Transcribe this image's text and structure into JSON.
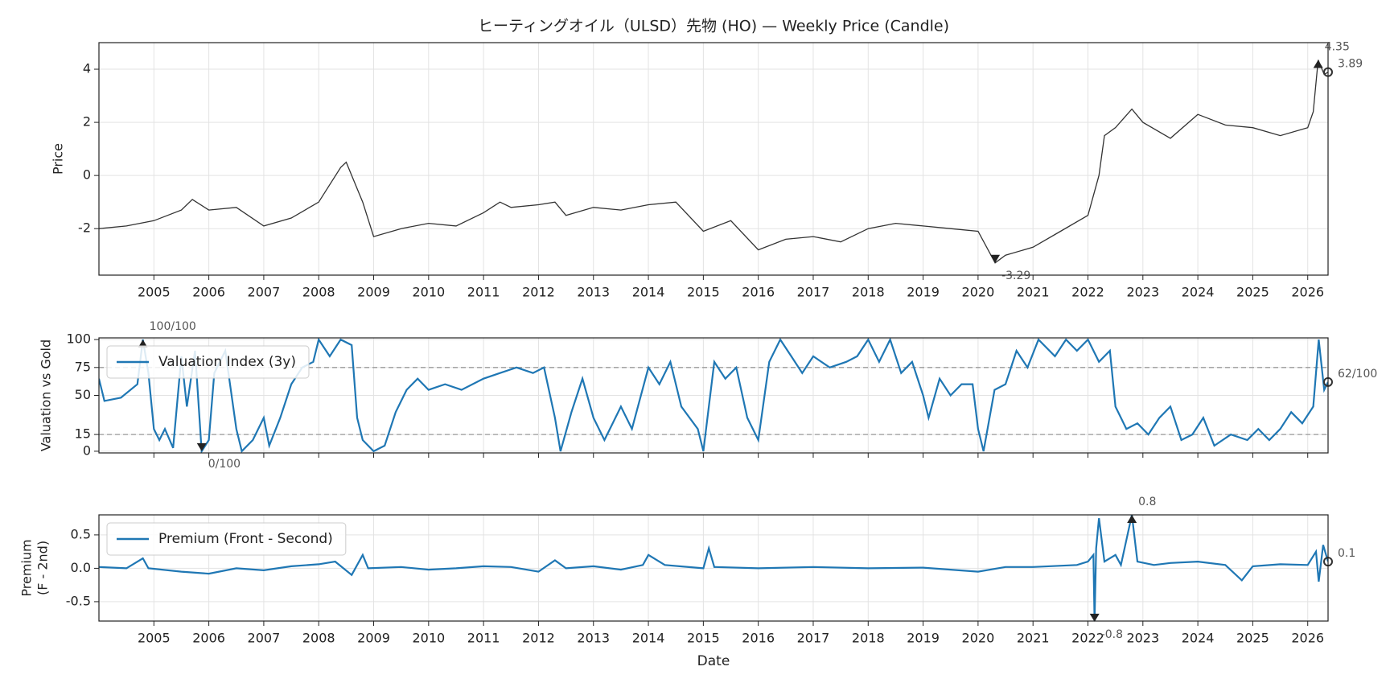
{
  "chart_data": [
    {
      "type": "line",
      "title": "ヒーティングオイル（ULSD）先物 (HO) — Weekly Price (Candle)",
      "ylabel": "Price",
      "xlim": [
        2004.0,
        2026.37
      ],
      "xticks": [
        2005,
        2006,
        2007,
        2008,
        2009,
        2010,
        2011,
        2012,
        2013,
        2014,
        2015,
        2016,
        2017,
        2018,
        2019,
        2020,
        2021,
        2022,
        2023,
        2024,
        2025,
        2026
      ],
      "ylim": [
        -3.75,
        5.0
      ],
      "yticks": [
        -2,
        0,
        2,
        4
      ],
      "grid": true,
      "x": [
        2004.0,
        2004.5,
        2005.0,
        2005.5,
        2005.7,
        2006.0,
        2006.5,
        2007.0,
        2007.5,
        2008.0,
        2008.4,
        2008.5,
        2008.8,
        2009.0,
        2009.5,
        2010.0,
        2010.5,
        2011.0,
        2011.3,
        2011.5,
        2012.0,
        2012.3,
        2012.5,
        2013.0,
        2013.5,
        2014.0,
        2014.5,
        2015.0,
        2015.5,
        2016.0,
        2016.5,
        2017.0,
        2017.5,
        2018.0,
        2018.5,
        2019.0,
        2019.5,
        2020.0,
        2020.31,
        2020.5,
        2021.0,
        2021.5,
        2022.0,
        2022.2,
        2022.3,
        2022.5,
        2022.8,
        2023.0,
        2023.5,
        2024.0,
        2024.5,
        2025.0,
        2025.5,
        2026.0,
        2026.1,
        2026.19,
        2026.3,
        2026.37
      ],
      "series": [
        {
          "color": "#333333",
          "values": [
            -2.0,
            -1.9,
            -1.7,
            -1.3,
            -0.9,
            -1.3,
            -1.2,
            -1.9,
            -1.6,
            -1.0,
            0.3,
            0.5,
            -1.0,
            -2.3,
            -2.0,
            -1.8,
            -1.9,
            -1.4,
            -1.0,
            -1.2,
            -1.1,
            -1.0,
            -1.5,
            -1.2,
            -1.3,
            -1.1,
            -1.0,
            -2.1,
            -1.7,
            -2.8,
            -2.4,
            -2.3,
            -2.5,
            -2.0,
            -1.8,
            -1.9,
            -2.0,
            -2.1,
            -3.29,
            -3.0,
            -2.7,
            -2.1,
            -1.5,
            0.0,
            1.5,
            1.8,
            2.5,
            2.0,
            1.4,
            2.3,
            1.9,
            1.8,
            1.5,
            1.8,
            2.4,
            4.35,
            3.8,
            3.89
          ]
        }
      ],
      "annotations": [
        {
          "x": 2026.19,
          "value": 4.35
        },
        {
          "x": 2020.31,
          "value": -3.29
        },
        {
          "x": 2026.37,
          "value": 3.89
        }
      ]
    },
    {
      "type": "line",
      "ylabel": "Valuation vs Gold",
      "xlim": [
        2004.0,
        2026.37
      ],
      "ylim": [
        -1.5,
        101.5
      ],
      "yticks": [
        0,
        15,
        50,
        75,
        100
      ],
      "grid": true,
      "hlines": [
        75,
        15
      ],
      "legend": "upper left",
      "x": [
        2004.0,
        2004.1,
        2004.4,
        2004.7,
        2004.8,
        2004.9,
        2005.0,
        2005.1,
        2005.2,
        2005.35,
        2005.5,
        2005.6,
        2005.75,
        2005.87,
        2006.0,
        2006.1,
        2006.3,
        2006.5,
        2006.6,
        2006.8,
        2007.0,
        2007.1,
        2007.3,
        2007.5,
        2007.7,
        2007.9,
        2008.0,
        2008.2,
        2008.4,
        2008.6,
        2008.7,
        2008.8,
        2009.0,
        2009.2,
        2009.4,
        2009.6,
        2009.8,
        2010.0,
        2010.3,
        2010.6,
        2011.0,
        2011.3,
        2011.6,
        2011.9,
        2012.1,
        2012.3,
        2012.4,
        2012.6,
        2012.8,
        2013.0,
        2013.2,
        2013.5,
        2013.7,
        2014.0,
        2014.2,
        2014.4,
        2014.6,
        2014.9,
        2015.0,
        2015.2,
        2015.4,
        2015.6,
        2015.8,
        2016.0,
        2016.2,
        2016.4,
        2016.6,
        2016.8,
        2017.0,
        2017.3,
        2017.6,
        2017.8,
        2018.0,
        2018.2,
        2018.4,
        2018.6,
        2018.8,
        2019.0,
        2019.1,
        2019.3,
        2019.5,
        2019.7,
        2019.9,
        2020.0,
        2020.1,
        2020.3,
        2020.5,
        2020.7,
        2020.9,
        2021.1,
        2021.4,
        2021.6,
        2021.8,
        2022.0,
        2022.2,
        2022.4,
        2022.5,
        2022.7,
        2022.9,
        2023.1,
        2023.3,
        2023.5,
        2023.7,
        2023.9,
        2024.1,
        2024.3,
        2024.6,
        2024.9,
        2025.1,
        2025.3,
        2025.5,
        2025.7,
        2025.9,
        2026.1,
        2026.2,
        2026.3,
        2026.37
      ],
      "series": [
        {
          "name": "Valuation Index (3y)",
          "color": "#1f77b4",
          "values": [
            65,
            45,
            48,
            60,
            100,
            70,
            20,
            10,
            20,
            3,
            85,
            40,
            90,
            0,
            10,
            70,
            90,
            20,
            0,
            10,
            30,
            5,
            30,
            60,
            75,
            80,
            100,
            85,
            100,
            95,
            30,
            10,
            0,
            5,
            35,
            55,
            65,
            55,
            60,
            55,
            65,
            70,
            75,
            70,
            75,
            30,
            0,
            35,
            65,
            30,
            10,
            40,
            20,
            75,
            60,
            80,
            40,
            20,
            0,
            80,
            65,
            75,
            30,
            10,
            80,
            100,
            85,
            70,
            85,
            75,
            80,
            85,
            100,
            80,
            100,
            70,
            80,
            50,
            30,
            65,
            50,
            60,
            60,
            20,
            0,
            55,
            60,
            90,
            75,
            100,
            85,
            100,
            90,
            100,
            80,
            90,
            40,
            20,
            25,
            15,
            30,
            40,
            10,
            15,
            30,
            5,
            15,
            10,
            20,
            10,
            20,
            35,
            25,
            40,
            100,
            55,
            62
          ]
        }
      ],
      "annotations": [
        {
          "x": 2004.8,
          "value": 100,
          "label": "100/100"
        },
        {
          "x": 2005.87,
          "value": 0,
          "label": "0/100"
        },
        {
          "x": 2026.37,
          "value": 62,
          "label": "62/100"
        }
      ]
    },
    {
      "type": "line",
      "ylabel": [
        "Premium",
        "(F - 2nd)"
      ],
      "xlabel": "Date",
      "xlim": [
        2004.0,
        2026.37
      ],
      "xticks": [
        2005,
        2006,
        2007,
        2008,
        2009,
        2010,
        2011,
        2012,
        2013,
        2014,
        2015,
        2016,
        2017,
        2018,
        2019,
        2020,
        2021,
        2022,
        2023,
        2024,
        2025,
        2026
      ],
      "ylim": [
        -0.79,
        0.8
      ],
      "yticks": [
        {
          "value": -0.5,
          "label": "-0.5"
        },
        {
          "value": 0,
          "label": "0.0"
        },
        {
          "value": 0.5,
          "label": "0.5"
        }
      ],
      "grid": true,
      "legend": "upper left",
      "x": [
        2004.0,
        2004.5,
        2004.8,
        2004.9,
        2005.5,
        2006.0,
        2006.5,
        2007.0,
        2007.5,
        2008.0,
        2008.3,
        2008.6,
        2008.8,
        2008.9,
        2009.5,
        2010.0,
        2010.5,
        2011.0,
        2011.5,
        2012.0,
        2012.3,
        2012.5,
        2013.0,
        2013.5,
        2013.9,
        2014.0,
        2014.3,
        2015.0,
        2015.1,
        2015.2,
        2016.0,
        2017.0,
        2018.0,
        2019.0,
        2020.0,
        2020.5,
        2021.0,
        2021.8,
        2022.0,
        2022.1,
        2022.12,
        2022.15,
        2022.2,
        2022.3,
        2022.5,
        2022.6,
        2022.8,
        2022.9,
        2023.2,
        2023.5,
        2024.0,
        2024.5,
        2024.8,
        2025.0,
        2025.5,
        2026.0,
        2026.15,
        2026.2,
        2026.28,
        2026.37
      ],
      "series": [
        {
          "name": "Premium (Front - Second)",
          "color": "#1f77b4",
          "values": [
            0.02,
            0.0,
            0.15,
            0.0,
            -0.05,
            -0.08,
            0.0,
            -0.03,
            0.03,
            0.06,
            0.1,
            -0.1,
            0.2,
            0.0,
            0.02,
            -0.02,
            0.0,
            0.03,
            0.02,
            -0.05,
            0.12,
            0.0,
            0.03,
            -0.02,
            0.05,
            0.2,
            0.05,
            0.0,
            0.3,
            0.02,
            0.0,
            0.02,
            0.0,
            0.01,
            -0.05,
            0.02,
            0.02,
            0.05,
            0.1,
            0.2,
            -0.8,
            0.3,
            0.75,
            0.1,
            0.2,
            0.05,
            0.8,
            0.1,
            0.05,
            0.08,
            0.1,
            0.05,
            -0.18,
            0.03,
            0.06,
            0.05,
            0.25,
            -0.2,
            0.35,
            0.1
          ]
        }
      ],
      "annotations": [
        {
          "x": 2022.8,
          "value": 0.8
        },
        {
          "x": 2022.12,
          "value": -0.8
        },
        {
          "x": 2026.37,
          "value": 0.1
        }
      ]
    }
  ]
}
